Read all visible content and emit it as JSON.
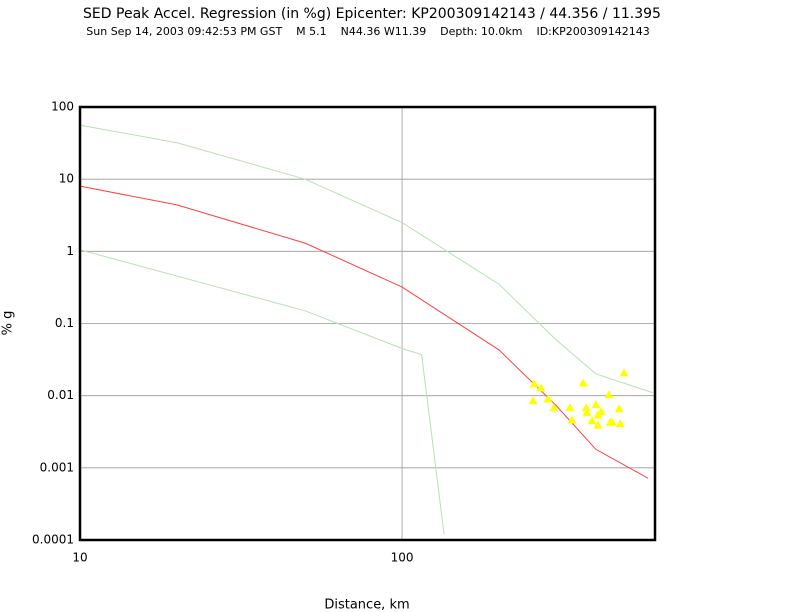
{
  "chart_data": {
    "type": "line",
    "title": "SED Peak Accel. Regression (in %g) Epicenter: KP200309142143 / 44.356 / 11.395",
    "subtitle": "Sun Sep 14, 2003 09:42:53 PM GST    M 5.1    N44.36 W11.39    Depth: 10.0km    ID:KP200309142143",
    "x_label": "Distance, km",
    "y_label": "% g",
    "log_x": true,
    "log_y": true,
    "grid": true,
    "xlim": [
      10,
      610
    ],
    "xticks": [
      10,
      100
    ],
    "ylim": [
      0.0001,
      100
    ],
    "yticks": [
      100,
      10,
      1,
      0.1,
      0.01,
      0.001,
      0.0001
    ],
    "series": [
      {
        "color": "#b8e0b8",
        "x": [
          10,
          20,
          50,
          100,
          200,
          300,
          400,
          600
        ],
        "values": [
          56,
          32,
          10,
          2.5,
          0.35,
          0.06,
          0.02,
          0.011
        ]
      },
      {
        "color": "#ff4040",
        "x": [
          10,
          20,
          50,
          100,
          200,
          300,
          400,
          580
        ],
        "values": [
          8,
          4.4,
          1.3,
          0.32,
          0.043,
          0.0074,
          0.0018,
          0.00072
        ]
      },
      {
        "color": "#b8e0b8",
        "x": [
          10,
          50,
          100,
          115,
          135
        ],
        "values": [
          1.05,
          0.15,
          0.045,
          0.037,
          0.00012
        ]
      },
      {
        "color": "#ffff00",
        "marker": "triangle",
        "x": [
          257,
          270,
          255,
          284,
          296,
          332,
          337,
          365,
          373,
          375,
          400,
          406,
          389,
          406,
          415,
          439,
          443,
          449,
          472,
          476,
          489
        ],
        "values": [
          0.0146,
          0.0128,
          0.0085,
          0.009,
          0.0068,
          0.0068,
          0.0046,
          0.015,
          0.0068,
          0.0058,
          0.0075,
          0.0054,
          0.0045,
          0.0039,
          0.006,
          0.0103,
          0.0043,
          0.0043,
          0.0066,
          0.0041,
          0.0207
        ]
      }
    ]
  }
}
